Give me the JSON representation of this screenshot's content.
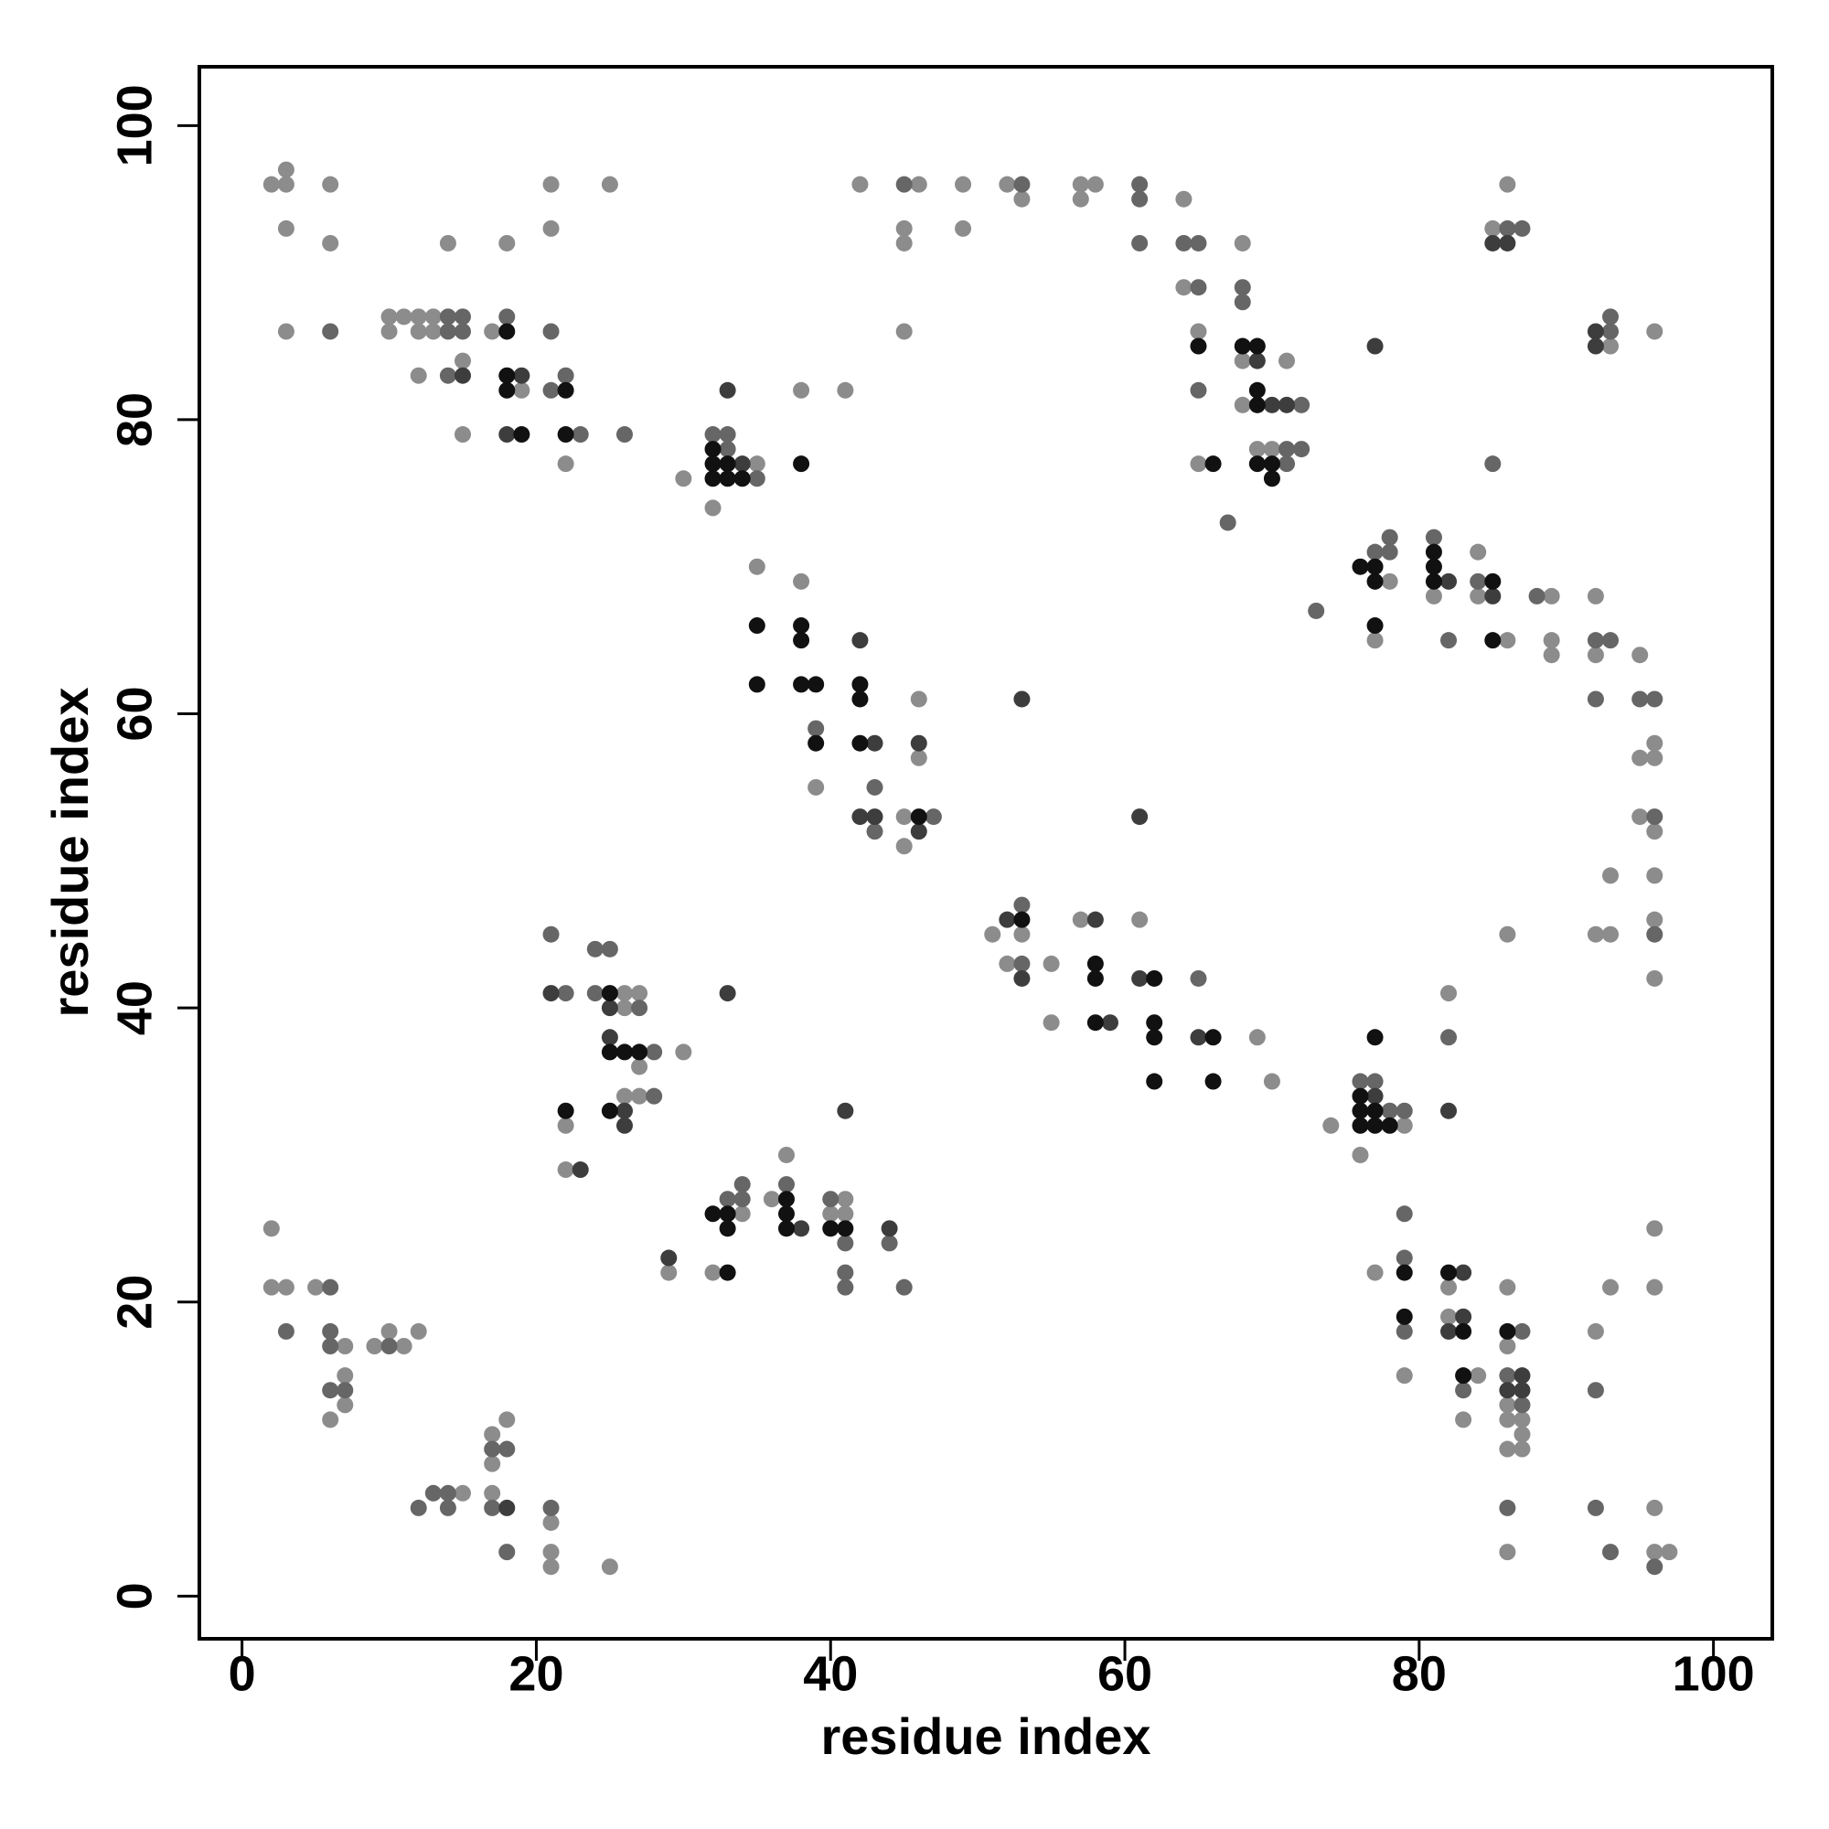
{
  "chart_data": {
    "type": "scatter",
    "x_label": "residue index",
    "y_label": "residue index",
    "xlim": [
      -2.9,
      104
    ],
    "ylim": [
      -2.9,
      104
    ],
    "xticks": [
      0,
      20,
      40,
      60,
      80,
      100
    ],
    "yticks": [
      0,
      20,
      40,
      60,
      80,
      100
    ],
    "series": [
      {
        "color": "#8c8c8c",
        "x": [
          2,
          3,
          3,
          6,
          3,
          6,
          3,
          10,
          11,
          12,
          13,
          10,
          12,
          13,
          14,
          12,
          15,
          15,
          17,
          18,
          19,
          21,
          21,
          22,
          25,
          30,
          35,
          32,
          38,
          41,
          42,
          46,
          45,
          45,
          45,
          49,
          49,
          52,
          53,
          57,
          58,
          57,
          64,
          64,
          68,
          65,
          65,
          68,
          71,
          68,
          69,
          70,
          85,
          86,
          93,
          96,
          78,
          77,
          81,
          84,
          84,
          86,
          89,
          89,
          89,
          92,
          92,
          95,
          96,
          95,
          96,
          95,
          96,
          93,
          96,
          96,
          92,
          93,
          96,
          86,
          35,
          38,
          46,
          46,
          39,
          45,
          45,
          51,
          53,
          52,
          55,
          57,
          61,
          55,
          69,
          70,
          74,
          79,
          76,
          82,
          26,
          27,
          26,
          30,
          27,
          26,
          27,
          22,
          22,
          29,
          34,
          32,
          36,
          37,
          41,
          40,
          41,
          2,
          2,
          3,
          5,
          7,
          7,
          7,
          6,
          9,
          11,
          10,
          12,
          17,
          18,
          17,
          15,
          17,
          21,
          21,
          21,
          25,
          77,
          79,
          82,
          82,
          84,
          83,
          86,
          86,
          86,
          86,
          87,
          87,
          86,
          87,
          86,
          92,
          93,
          96,
          96,
          96,
          96,
          97
        ],
        "values": [
          96,
          97,
          96,
          96,
          93,
          92,
          86,
          87,
          87,
          87,
          87,
          86,
          86,
          86,
          92,
          83,
          84,
          79,
          86,
          92,
          82,
          96,
          93,
          77,
          96,
          76,
          77,
          74,
          82,
          82,
          96,
          96,
          93,
          92,
          86,
          96,
          93,
          96,
          95,
          96,
          96,
          95,
          95,
          89,
          92,
          86,
          77,
          84,
          84,
          81,
          78,
          78,
          93,
          96,
          85,
          86,
          69,
          65,
          68,
          71,
          68,
          65,
          68,
          65,
          64,
          68,
          64,
          64,
          58,
          57,
          57,
          53,
          52,
          49,
          49,
          46,
          45,
          45,
          42,
          45,
          70,
          69,
          61,
          57,
          55,
          53,
          51,
          45,
          45,
          43,
          43,
          46,
          46,
          39,
          38,
          35,
          32,
          32,
          30,
          41,
          41,
          41,
          40,
          37,
          36,
          34,
          34,
          32,
          29,
          22,
          26,
          22,
          27,
          30,
          27,
          26,
          26,
          25,
          21,
          21,
          21,
          17,
          15,
          13,
          12,
          17,
          17,
          18,
          18,
          11,
          12,
          9,
          7,
          7,
          5,
          3,
          2,
          2,
          22,
          15,
          21,
          19,
          15,
          12,
          21,
          17,
          13,
          12,
          12,
          11,
          10,
          10,
          3,
          18,
          21,
          25,
          21,
          6,
          3,
          3
        ]
      },
      {
        "color": "#666666",
        "x": [
          6,
          14,
          15,
          14,
          15,
          14,
          18,
          21,
          21,
          22,
          23,
          26,
          32,
          33,
          33,
          35,
          45,
          53,
          61,
          61,
          61,
          64,
          65,
          65,
          68,
          68,
          65,
          67,
          72,
          71,
          72,
          71,
          86,
          87,
          93,
          93,
          85,
          73,
          77,
          78,
          78,
          81,
          82,
          84,
          88,
          92,
          93,
          92,
          95,
          96,
          96,
          96,
          39,
          43,
          43,
          47,
          53,
          53,
          65,
          76,
          77,
          78,
          79,
          82,
          21,
          22,
          24,
          25,
          24,
          27,
          28,
          28,
          33,
          34,
          34,
          37,
          40,
          41,
          41,
          41,
          44,
          45,
          3,
          6,
          6,
          6,
          6,
          7,
          10,
          17,
          18,
          12,
          13,
          14,
          14,
          17,
          18,
          21,
          79,
          79,
          79,
          83,
          87,
          86,
          87,
          86,
          92,
          92,
          93,
          96
        ],
        "values": [
          86,
          87,
          87,
          86,
          86,
          83,
          87,
          86,
          82,
          83,
          79,
          79,
          79,
          79,
          78,
          76,
          96,
          96,
          96,
          95,
          92,
          92,
          92,
          89,
          89,
          88,
          82,
          73,
          81,
          78,
          78,
          77,
          93,
          93,
          86,
          87,
          77,
          67,
          71,
          71,
          72,
          72,
          65,
          69,
          68,
          65,
          65,
          61,
          61,
          61,
          53,
          45,
          59,
          55,
          52,
          53,
          47,
          43,
          42,
          35,
          35,
          33,
          33,
          38,
          45,
          41,
          44,
          44,
          41,
          40,
          37,
          34,
          27,
          27,
          28,
          28,
          27,
          24,
          22,
          21,
          24,
          21,
          18,
          21,
          18,
          17,
          14,
          14,
          17,
          10,
          10,
          6,
          7,
          7,
          6,
          6,
          3,
          6,
          26,
          23,
          18,
          14,
          18,
          15,
          13,
          6,
          14,
          6,
          3,
          2
        ]
      },
      {
        "color": "#3d3d3d",
        "x": [
          15,
          19,
          18,
          34,
          33,
          69,
          70,
          71,
          77,
          85,
          86,
          92,
          92,
          82,
          85,
          42,
          43,
          46,
          42,
          43,
          46,
          53,
          61,
          52,
          53,
          58,
          61,
          59,
          65,
          77,
          82,
          21,
          25,
          25,
          26,
          26,
          23,
          33,
          29,
          38,
          41,
          44,
          18,
          83,
          83,
          82,
          87,
          86,
          87
        ],
        "values": [
          83,
          83,
          79,
          77,
          82,
          84,
          81,
          81,
          85,
          92,
          92,
          86,
          85,
          69,
          68,
          65,
          58,
          58,
          53,
          53,
          52,
          61,
          53,
          46,
          42,
          46,
          42,
          39,
          38,
          34,
          33,
          41,
          40,
          38,
          33,
          32,
          29,
          41,
          23,
          25,
          33,
          25,
          6,
          22,
          19,
          18,
          15,
          14,
          14
        ]
      },
      {
        "color": "#111111",
        "x": [
          18,
          18,
          18,
          19,
          22,
          22,
          32,
          32,
          33,
          32,
          33,
          34,
          38,
          65,
          66,
          68,
          69,
          69,
          69,
          69,
          70,
          70,
          76,
          77,
          77,
          77,
          81,
          81,
          81,
          85,
          85,
          35,
          38,
          38,
          35,
          38,
          39,
          42,
          42,
          39,
          42,
          46,
          53,
          58,
          58,
          62,
          58,
          62,
          62,
          66,
          62,
          66,
          76,
          76,
          77,
          76,
          77,
          78,
          77,
          25,
          25,
          26,
          27,
          22,
          25,
          32,
          33,
          33,
          33,
          37,
          37,
          37,
          40,
          41,
          79,
          79,
          82,
          83,
          83,
          86
        ],
        "values": [
          86,
          83,
          82,
          79,
          82,
          79,
          78,
          77,
          77,
          76,
          76,
          76,
          77,
          85,
          77,
          85,
          85,
          82,
          81,
          77,
          77,
          76,
          70,
          70,
          69,
          66,
          71,
          70,
          69,
          69,
          65,
          66,
          66,
          65,
          62,
          62,
          62,
          62,
          61,
          58,
          58,
          53,
          46,
          43,
          42,
          42,
          39,
          39,
          38,
          38,
          35,
          35,
          34,
          33,
          33,
          32,
          32,
          32,
          38,
          41,
          37,
          37,
          37,
          33,
          33,
          26,
          26,
          25,
          22,
          27,
          26,
          25,
          25,
          25,
          22,
          19,
          22,
          18,
          15,
          18
        ]
      }
    ]
  }
}
